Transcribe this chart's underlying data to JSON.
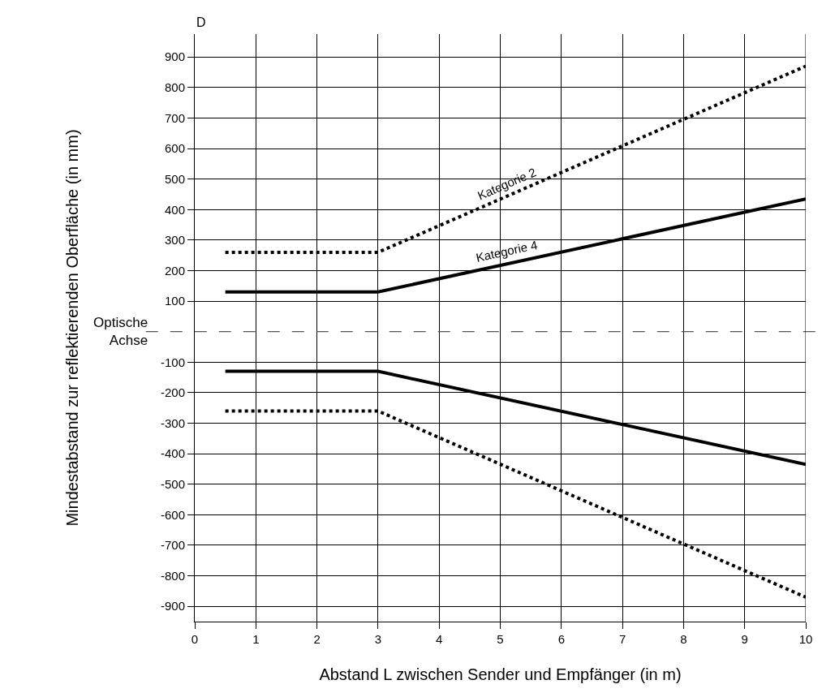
{
  "chart_data": {
    "type": "line",
    "xlabel": "Abstand L zwischen Sender und Empfänger (in m)",
    "ylabel": "Mindestabstand zur reflektierenden Oberfläche (in mm)",
    "annotations": [
      "D"
    ],
    "series": [
      {
        "name": "Kategorie 2",
        "color": "#000000",
        "line_style": "dotted",
        "x": [
          0.5,
          3,
          10
        ],
        "values": [
          260,
          260,
          870
        ]
      },
      {
        "name": "Kategorie 4",
        "color": "#000000",
        "line_style": "solid",
        "x": [
          0.5,
          3,
          10
        ],
        "values": [
          130,
          130,
          435
        ]
      },
      {
        "color": "#000000",
        "line_style": "solid",
        "x": [
          0.5,
          3,
          10
        ],
        "values": [
          -130,
          -130,
          -435
        ]
      },
      {
        "color": "#000000",
        "line_style": "dotted",
        "x": [
          0.5,
          3,
          10
        ],
        "values": [
          -260,
          -260,
          -870
        ]
      }
    ],
    "ref_lines": [
      {
        "axis": "y",
        "value": 0,
        "label": "Optische Achse",
        "color": "#555555",
        "line_style": "dashed"
      }
    ],
    "xlim": [
      0,
      10
    ],
    "ylim": [
      -950,
      975
    ],
    "xticks": [
      0,
      1,
      2,
      3,
      4,
      5,
      6,
      7,
      8,
      9,
      10
    ],
    "yticks": [
      -900,
      -800,
      -700,
      -600,
      -500,
      -400,
      -300,
      -200,
      -100,
      100,
      200,
      300,
      400,
      500,
      600,
      700,
      800,
      900
    ],
    "grid": true,
    "marker": "none"
  }
}
